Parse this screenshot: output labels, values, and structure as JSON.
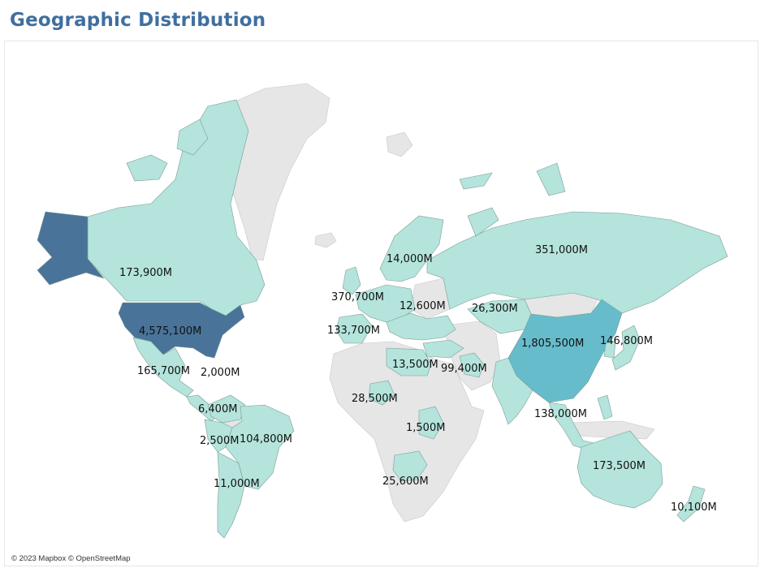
{
  "title": "Geographic Distribution",
  "attribution": "© 2023 Mapbox © OpenStreetMap",
  "colors": {
    "title": "#3f6fa0",
    "highest": "#4a7399",
    "high": "#67bccb",
    "low": "#b4e4dc",
    "no_data": "#e6e6e6"
  },
  "regions": [
    {
      "id": "usa",
      "name": "United States",
      "value": "4,575,100M",
      "level": "highest"
    },
    {
      "id": "alaska",
      "name": "Alaska",
      "level": "highest"
    },
    {
      "id": "canada",
      "name": "Canada",
      "value": "173,900M",
      "level": "low"
    },
    {
      "id": "mexico",
      "name": "Mexico",
      "value": "165,700M",
      "level": "low"
    },
    {
      "id": "central-america",
      "name": "Central America",
      "value": "2,000M",
      "level": "low"
    },
    {
      "id": "colombia",
      "name": "Colombia",
      "value": "6,400M",
      "level": "low"
    },
    {
      "id": "peru",
      "name": "Peru",
      "value": "2,500M",
      "level": "low"
    },
    {
      "id": "brazil",
      "name": "Brazil",
      "value": "104,800M",
      "level": "low"
    },
    {
      "id": "argentina",
      "name": "Argentina",
      "value": "11,000M",
      "level": "low"
    },
    {
      "id": "scandinavia",
      "name": "Scandinavia",
      "value": "14,000M",
      "level": "low"
    },
    {
      "id": "west-europe",
      "name": "Western Europe",
      "value": "370,700M",
      "level": "low"
    },
    {
      "id": "central-europe",
      "name": "Central Europe",
      "value": "12,600M",
      "level": "low"
    },
    {
      "id": "iberia",
      "name": "Iberia",
      "value": "133,700M",
      "level": "low"
    },
    {
      "id": "russia",
      "name": "Russia",
      "value": "351,000M",
      "level": "low"
    },
    {
      "id": "central-asia",
      "name": "Central Asia",
      "value": "26,300M",
      "level": "low"
    },
    {
      "id": "china",
      "name": "China",
      "value": "1,805,500M",
      "level": "high"
    },
    {
      "id": "japan",
      "name": "Japan",
      "value": "146,800M",
      "level": "low"
    },
    {
      "id": "egypt",
      "name": "Egypt",
      "value": "13,500M",
      "level": "low"
    },
    {
      "id": "gulf",
      "name": "Gulf",
      "value": "99,400M",
      "level": "low"
    },
    {
      "id": "nigeria",
      "name": "Nigeria",
      "value": "28,500M",
      "level": "low"
    },
    {
      "id": "east-africa",
      "name": "East Africa",
      "value": "1,500M",
      "level": "low"
    },
    {
      "id": "south-africa",
      "name": "South Africa",
      "value": "25,600M",
      "level": "low"
    },
    {
      "id": "southeast-asia",
      "name": "Southeast Asia",
      "value": "138,000M",
      "level": "low"
    },
    {
      "id": "australia",
      "name": "Australia",
      "value": "173,500M",
      "level": "low"
    },
    {
      "id": "new-zealand",
      "name": "New Zealand",
      "value": "10,100M",
      "level": "low"
    }
  ]
}
